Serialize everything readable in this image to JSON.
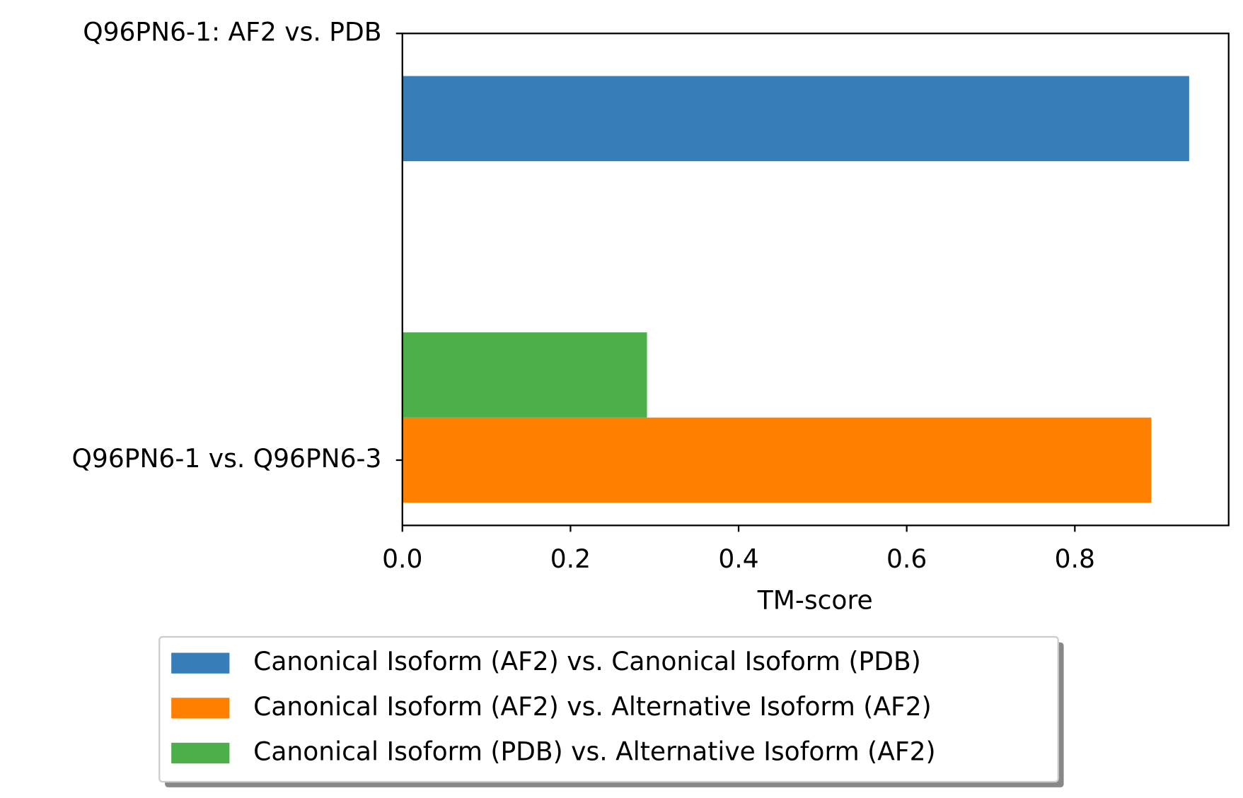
{
  "chart_data": {
    "type": "barh",
    "categories": [
      "Q96PN6-1: AF2 vs. PDB",
      "Q96PN6-1 vs. Q96PN6-3"
    ],
    "series": [
      {
        "name": "Canonical Isoform (AF2) vs. Canonical Isoform (PDB)",
        "color": "#377eb8",
        "values": [
          0.936,
          null
        ]
      },
      {
        "name": "Canonical Isoform (AF2) vs. Alternative Isoform (AF2)",
        "color": "#ff7f00",
        "values": [
          null,
          0.891
        ]
      },
      {
        "name": "Canonical Isoform (PDB) vs. Alternative Isoform (AF2)",
        "color": "#4daf4a",
        "values": [
          null,
          0.291
        ]
      }
    ],
    "xlabel": "TM-score",
    "xlim": [
      0,
      0.983
    ],
    "xticks": [
      {
        "value": 0,
        "label": "0.0"
      },
      0.2,
      0.4,
      0.6,
      0.8
    ],
    "legend": "bottom"
  }
}
